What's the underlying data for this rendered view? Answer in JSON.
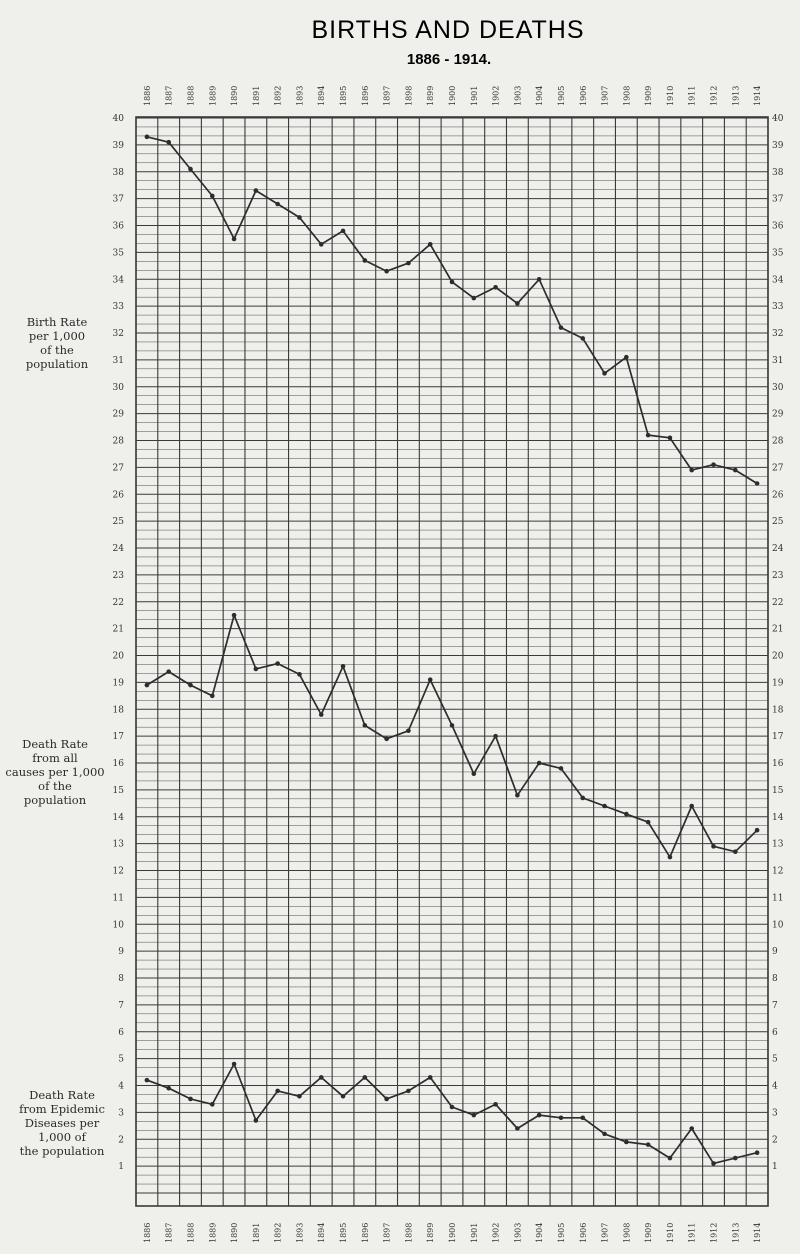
{
  "chart_data": {
    "type": "line",
    "title": "BIRTHS AND DEATHS",
    "subtitle": "1886 - 1914.",
    "x": [
      "1886",
      "1887",
      "1888",
      "1889",
      "1890",
      "1891",
      "1892",
      "1893",
      "1894",
      "1895",
      "1896",
      "1897",
      "1898",
      "1899",
      "1900",
      "1901",
      "1902",
      "1903",
      "1904",
      "1905",
      "1906",
      "1907",
      "1908",
      "1909",
      "1910",
      "1911",
      "1912",
      "1913",
      "1914"
    ],
    "yticks": [
      1,
      2,
      3,
      4,
      5,
      6,
      7,
      8,
      9,
      10,
      11,
      12,
      13,
      14,
      15,
      16,
      17,
      18,
      19,
      20,
      21,
      22,
      23,
      24,
      25,
      26,
      27,
      28,
      29,
      30,
      31,
      32,
      33,
      34,
      35,
      36,
      37,
      38,
      39,
      40
    ],
    "ylim": [
      0,
      40
    ],
    "grid": true,
    "series": [
      {
        "name": "Birth Rate per 1,000 of the population",
        "label_lines": [
          "Birth Rate",
          "per 1,000",
          "of the",
          "population"
        ],
        "values": [
          39.3,
          39.1,
          38.1,
          37.1,
          35.5,
          37.3,
          36.8,
          36.3,
          35.3,
          35.8,
          34.7,
          34.3,
          34.6,
          35.3,
          33.9,
          33.3,
          33.7,
          33.1,
          34.0,
          32.2,
          31.8,
          30.5,
          31.1,
          28.2,
          28.1,
          26.9,
          27.1,
          26.9,
          26.4
        ]
      },
      {
        "name": "Death Rate from all causes per 1,000 of the population",
        "label_lines": [
          "Death Rate",
          "from all",
          "causes per 1,000",
          "of the",
          "population"
        ],
        "values": [
          18.9,
          19.4,
          18.9,
          18.5,
          21.5,
          19.5,
          19.7,
          19.3,
          17.8,
          19.6,
          17.4,
          16.9,
          17.2,
          19.1,
          17.4,
          15.6,
          17.0,
          14.8,
          16.0,
          15.8,
          14.7,
          14.4,
          14.1,
          13.8,
          12.5,
          14.4,
          12.9,
          12.7,
          13.5
        ]
      },
      {
        "name": "Death Rate from Epidemic Diseases per 1,000 of the population",
        "label_lines": [
          "Death Rate",
          "from Epidemic",
          "Diseases per",
          "1,000 of",
          "the population"
        ],
        "values": [
          4.2,
          3.9,
          3.5,
          3.3,
          4.8,
          2.7,
          3.8,
          3.6,
          4.3,
          3.6,
          4.3,
          3.5,
          3.8,
          4.3,
          3.2,
          2.9,
          3.3,
          2.4,
          2.9,
          2.8,
          2.8,
          2.2,
          1.9,
          1.8,
          1.3,
          2.4,
          1.1,
          1.3,
          1.5
        ]
      }
    ],
    "colors": {
      "line": "#2d2d2d",
      "grid": "#3a3a3a",
      "background": "#efefeb"
    }
  }
}
